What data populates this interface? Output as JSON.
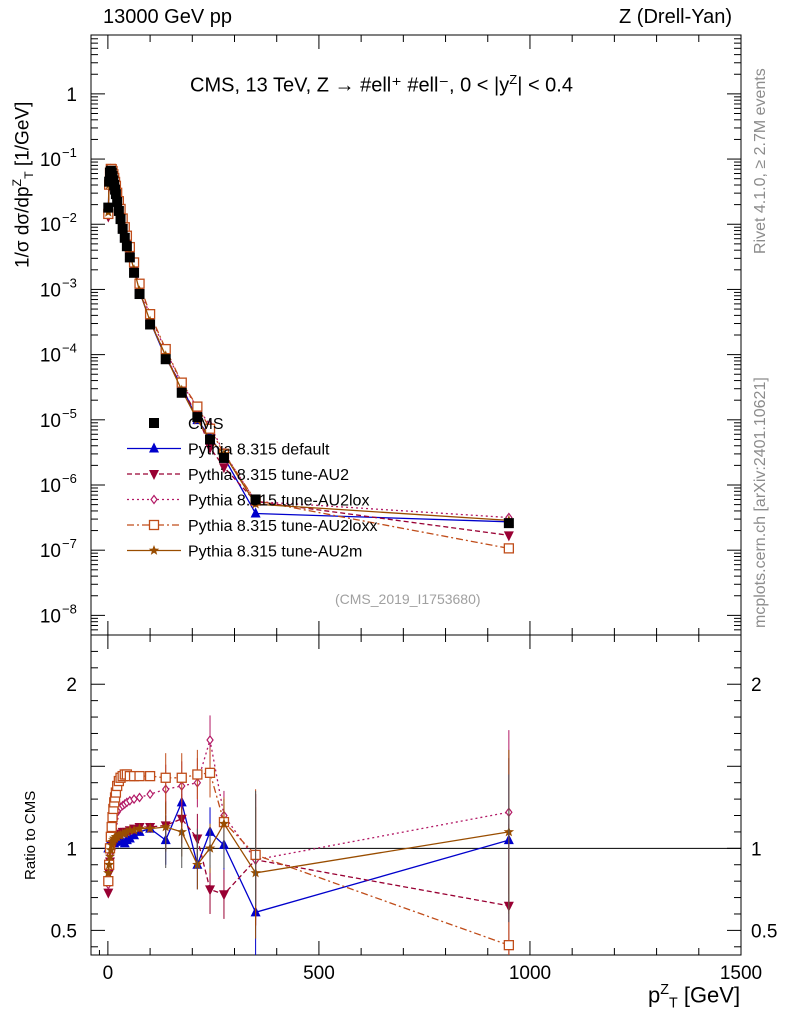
{
  "header": {
    "left": "13000 GeV pp",
    "right": "Z (Drell-Yan)"
  },
  "side_text": {
    "rivet": "Rivet 4.1.0, ≥ 2.7M events",
    "mcplots": "mcplots.cern.ch [arXiv:2401.10621]"
  },
  "plot": {
    "title": "CMS, 13 TeV, Z → #ell⁺ #ell⁻, 0 < |y",
    "title_sup": "Z",
    "title_tail": "| < 0.4",
    "analysis_id": "(CMS_2019_I1753680)",
    "ylabel_main_pre": "1/σ dσ/dp",
    "ylabel_main_sup": "Z",
    "ylabel_main_sub": "T",
    "ylabel_main_post": " [1/GeV]",
    "ylabel_ratio": "Ratio to CMS",
    "xlabel_pre": "p",
    "xlabel_sup": "Z",
    "xlabel_sub": "T",
    "xlabel_post": " [GeV]"
  },
  "colors": {
    "data": "#000000",
    "default": "#0000cc",
    "au2": "#990033",
    "au2lox": "#b31a66",
    "au2loxx": "#c04d1a",
    "au2m": "#994d00"
  },
  "chart_data": {
    "type": "line",
    "title": "CMS, 13 TeV, Z → #ell⁺ #ell⁻, 0 < |yZ| < 0.4",
    "xlabel": "pT^Z [GeV]",
    "ylabel": "1/σ dσ/dpT^Z [1/GeV]",
    "yscale": "log",
    "xlim": [
      -40,
      1500
    ],
    "ylim": [
      5e-09,
      8
    ],
    "xticks": [
      0,
      500,
      1000,
      1500
    ],
    "xtick_labels": [
      "0",
      "500",
      "1000",
      "1500"
    ],
    "yticks": [
      1e-08,
      1e-07,
      1e-06,
      1e-05,
      0.0001,
      0.001,
      0.01,
      0.1,
      1
    ],
    "ytick_labels": [
      {
        "m": "10",
        "e": "−8"
      },
      {
        "m": "10",
        "e": "−7"
      },
      {
        "m": "10",
        "e": "−6"
      },
      {
        "m": "10",
        "e": "−5"
      },
      {
        "m": "10",
        "e": "−4"
      },
      {
        "m": "10",
        "e": "−3"
      },
      {
        "m": "10",
        "e": "−2"
      },
      {
        "m": "10",
        "e": "−1"
      },
      {
        "m": "1",
        "e": ""
      }
    ],
    "ratio_ylim": [
      0.35,
      2.3
    ],
    "ratio_yticks": [
      0.5,
      1,
      2
    ],
    "ratio_ytick_labels": [
      "0.5",
      "1",
      "2"
    ],
    "x": [
      1,
      3,
      5,
      7,
      9,
      11,
      13,
      15,
      17,
      19,
      22,
      26,
      30,
      35,
      40,
      45,
      52,
      62,
      75,
      100,
      137,
      175,
      212,
      242,
      275,
      350,
      950
    ],
    "data": {
      "name": "CMS",
      "values": [
        0.018,
        0.045,
        0.062,
        0.066,
        0.062,
        0.055,
        0.047,
        0.04,
        0.034,
        0.029,
        0.022,
        0.016,
        0.012,
        0.0085,
        0.0062,
        0.0046,
        0.0031,
        0.0018,
        0.00085,
        0.00029,
        8.5e-05,
        2.6e-05,
        1.1e-05,
        5e-06,
        2.6e-06,
        6e-07,
        2.6e-07
      ]
    },
    "series": [
      {
        "name": "Pythia 8.315 default",
        "key": "default",
        "marker": "tri-up",
        "dash": "",
        "ratio": [
          1.0,
          1.02,
          1.04,
          1.05,
          1.06,
          1.05,
          1.04,
          1.03,
          1.04,
          1.06,
          1.05,
          1.07,
          1.05,
          1.04,
          1.03,
          1.05,
          1.06,
          1.08,
          1.1,
          1.12,
          1.05,
          1.28,
          0.9,
          1.1,
          1.02,
          0.61,
          1.05
        ]
      },
      {
        "name": "Pythia 8.315 tune-AU2",
        "key": "au2",
        "marker": "tri-down",
        "dash": "5,3",
        "ratio": [
          0.73,
          0.85,
          0.92,
          0.97,
          1.0,
          1.02,
          1.04,
          1.05,
          1.06,
          1.07,
          1.07,
          1.08,
          1.09,
          1.1,
          1.1,
          1.1,
          1.11,
          1.12,
          1.13,
          1.13,
          1.14,
          1.18,
          1.06,
          0.75,
          0.72,
          0.93,
          0.65
        ]
      },
      {
        "name": "Pythia 8.315 tune-AU2lox",
        "key": "au2lox",
        "marker": "diamond",
        "dash": "2,3",
        "ratio": [
          0.78,
          0.88,
          0.96,
          1.01,
          1.05,
          1.09,
          1.12,
          1.15,
          1.18,
          1.21,
          1.22,
          1.24,
          1.25,
          1.26,
          1.27,
          1.28,
          1.29,
          1.3,
          1.31,
          1.33,
          1.36,
          1.38,
          1.4,
          1.66,
          1.2,
          0.93,
          1.22
        ]
      },
      {
        "name": "Pythia 8.315 tune-AU2loxx",
        "key": "au2loxx",
        "marker": "square-open",
        "dash": "7,3,2,3",
        "ratio": [
          0.8,
          0.9,
          1.0,
          1.07,
          1.13,
          1.19,
          1.24,
          1.28,
          1.31,
          1.34,
          1.38,
          1.41,
          1.43,
          1.44,
          1.45,
          1.45,
          1.44,
          1.44,
          1.44,
          1.44,
          1.43,
          1.43,
          1.45,
          1.46,
          1.16,
          0.96,
          0.41
        ]
      },
      {
        "name": "Pythia 8.315 tune-AU2m",
        "key": "au2m",
        "marker": "star",
        "dash": "",
        "ratio": [
          0.85,
          0.9,
          0.95,
          0.99,
          1.02,
          1.04,
          1.05,
          1.06,
          1.06,
          1.07,
          1.07,
          1.08,
          1.08,
          1.09,
          1.09,
          1.1,
          1.11,
          1.11,
          1.12,
          1.12,
          1.13,
          1.1,
          0.9,
          1.0,
          1.15,
          0.85,
          1.1
        ]
      }
    ],
    "legend": [
      "CMS",
      "Pythia 8.315 default",
      "Pythia 8.315 tune-AU2",
      "Pythia 8.315 tune-AU2lox",
      "Pythia 8.315 tune-AU2loxx",
      "Pythia 8.315 tune-AU2m"
    ],
    "legend_position": "bottom-left"
  }
}
